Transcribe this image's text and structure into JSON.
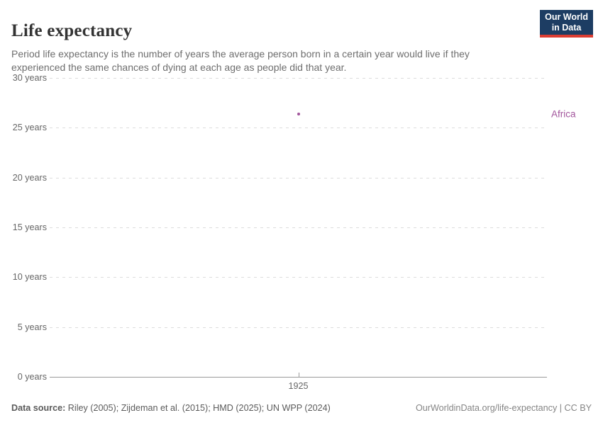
{
  "header": {
    "title": "Life expectancy",
    "subtitle": "Period life expectancy is the number of years the average person born in a certain year would live if they experienced the same chances of dying at each age as people did that year.",
    "logo": {
      "line1": "Our World",
      "line2": "in Data",
      "background_color": "#1d3d63",
      "accent_color": "#dc3d32"
    }
  },
  "chart_data": {
    "type": "scatter",
    "title": "Life expectancy",
    "xlabel": "",
    "ylabel": "",
    "ylim": [
      0,
      30
    ],
    "grid": "horizontal-dashed",
    "legend_position": "right-of-plot-entity-label",
    "yticks": [
      {
        "value": 0,
        "label": "0 years"
      },
      {
        "value": 5,
        "label": "5 years"
      },
      {
        "value": 10,
        "label": "10 years"
      },
      {
        "value": 15,
        "label": "15 years"
      },
      {
        "value": 20,
        "label": "20 years"
      },
      {
        "value": 25,
        "label": "25 years"
      },
      {
        "value": 30,
        "label": "30 years"
      }
    ],
    "xticks": [
      {
        "value": 1925,
        "label": "1925"
      }
    ],
    "series": [
      {
        "name": "Africa",
        "color": "#a2559c",
        "points": [
          {
            "x": 1925,
            "y": 26.4
          }
        ]
      }
    ]
  },
  "footer": {
    "source_label": "Data source:",
    "source_text": " Riley (2005); Zijdeman et al. (2015); HMD (2025); UN WPP (2024)",
    "url_text": "OurWorldinData.org/life-expectancy | CC BY"
  }
}
